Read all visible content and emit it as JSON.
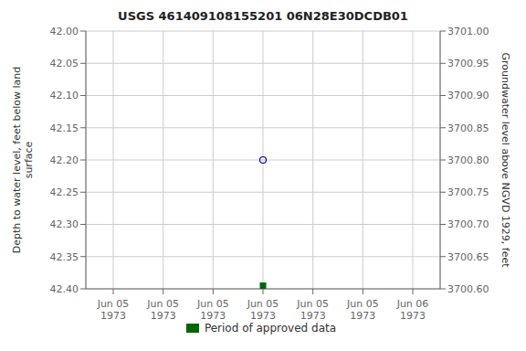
{
  "chart_data": {
    "type": "scatter",
    "title": "USGS 461409108155201 06N28E30DCDB01",
    "categories": [
      "Jun 05\n1973",
      "Jun 05\n1973",
      "Jun 05\n1973",
      "Jun 05\n1973",
      "Jun 05\n1973",
      "Jun 05\n1973",
      "Jun 06\n1973"
    ],
    "ylabel": "Depth to water level, feet below land\nsurface",
    "y2label": "Groundwater level above NGVD 1929, feet",
    "ylim": [
      42.4,
      42.0
    ],
    "yticks": [
      {
        "value": 42.0,
        "label": "42.00"
      },
      42.05,
      {
        "value": 42.1,
        "label": "42.10"
      },
      42.15,
      {
        "value": 42.2,
        "label": "42.20"
      },
      42.25,
      {
        "value": 42.3,
        "label": "42.30"
      },
      42.35,
      {
        "value": 42.4,
        "label": "42.40"
      }
    ],
    "y2lim": [
      3700.6,
      3701.0
    ],
    "y2ticks": [
      {
        "value": 3700.6,
        "label": "3700.60"
      },
      3700.65,
      {
        "value": 3700.7,
        "label": "3700.70"
      },
      3700.75,
      {
        "value": 3700.8,
        "label": "3700.80"
      },
      3700.85,
      {
        "value": 3700.9,
        "label": "3700.90"
      },
      3700.95,
      {
        "value": 3701.0,
        "label": "3701.00"
      }
    ],
    "grid": true,
    "legend": "bottom",
    "series": [
      {
        "values": [
          null,
          null,
          null,
          42.2,
          null,
          null,
          null
        ],
        "color": "#0000cc",
        "marker": "circle"
      },
      {
        "name": "Period of approved data",
        "values": [
          null,
          null,
          null,
          42.395,
          null,
          null,
          null
        ],
        "color": "#006600",
        "marker": "square"
      }
    ]
  }
}
